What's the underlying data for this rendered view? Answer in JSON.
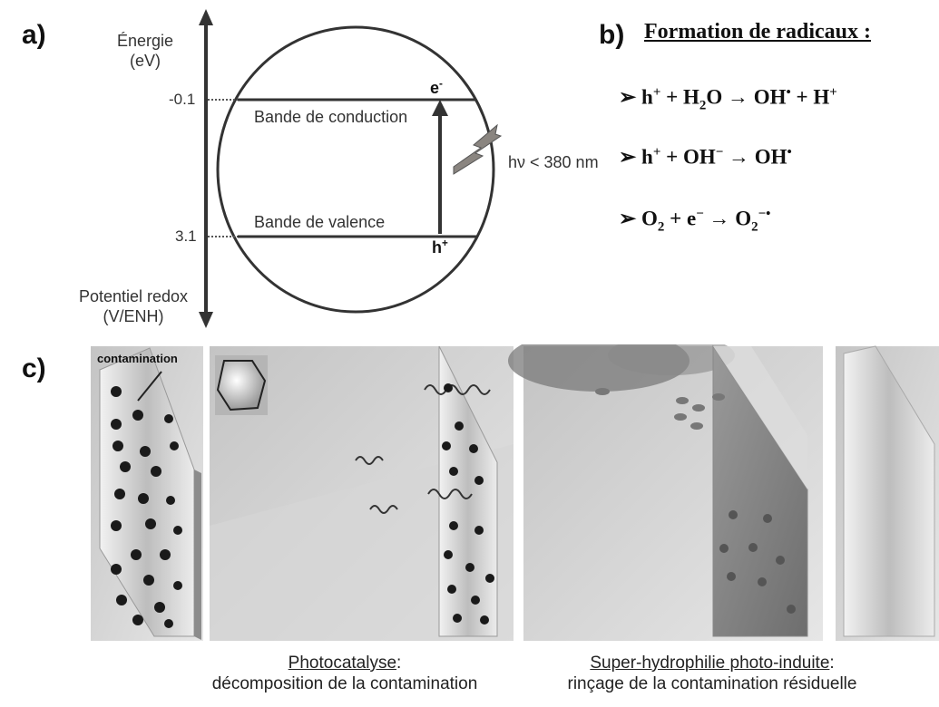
{
  "panel_a": {
    "letter": "a)",
    "axis_top_label_1": "Énergie",
    "axis_top_label_2": "(eV)",
    "axis_bottom_label_1": "Potentiel redox",
    "axis_bottom_label_2": "(V/ENH)",
    "tick_conduction": "-0.1",
    "tick_valence": "3.1",
    "conduction_band": "Bande de conduction",
    "valence_band": "Bande de valence",
    "electron": "e",
    "electron_sup": "-",
    "hole": "h",
    "hole_sup": "+",
    "light_label": "hν < 380 nm"
  },
  "panel_b": {
    "letter": "b)",
    "title": "Formation de radicaux :",
    "bullet": "➢"
  },
  "panel_c": {
    "letter": "c)",
    "contamination_label": "contamination",
    "caption_left_title": "Photocatalyse",
    "caption_left_colon": ":",
    "caption_left_sub": "décomposition de la contamination",
    "caption_right_title": "Super-hydrophilie photo-induite",
    "caption_right_colon": ":",
    "caption_right_sub": "rinçage de la contamination résiduelle"
  },
  "colors": {
    "line": "#333333",
    "lightning": "#8a8580",
    "panel_bg": "#cfcfcf",
    "grime": "#1a1a1a"
  }
}
